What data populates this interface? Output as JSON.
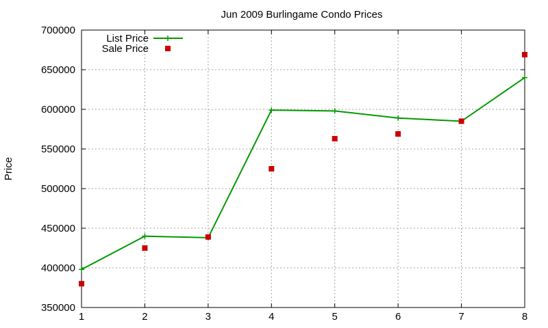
{
  "chart_data": {
    "type": "line",
    "title": "Jun 2009 Burlingame Condo Prices",
    "xlabel": "",
    "ylabel": "Price",
    "x": [
      1,
      2,
      3,
      4,
      5,
      6,
      7,
      8
    ],
    "xlim": [
      1,
      8
    ],
    "ylim": [
      350000,
      700000
    ],
    "yticks": [
      350000,
      400000,
      450000,
      500000,
      550000,
      600000,
      650000,
      700000
    ],
    "xticks": [
      1,
      2,
      3,
      4,
      5,
      6,
      7,
      8
    ],
    "grid": true,
    "legend_position": "top-left",
    "series": [
      {
        "name": "List Price",
        "style": "line-with-plus-markers",
        "color": "#009900",
        "values": [
          398000,
          440000,
          438000,
          599000,
          598000,
          589000,
          585000,
          640000
        ]
      },
      {
        "name": "Sale Price",
        "style": "square-markers",
        "color": "#cc0000",
        "values": [
          380000,
          425000,
          439000,
          525000,
          563000,
          569000,
          585000,
          669000
        ]
      }
    ]
  }
}
